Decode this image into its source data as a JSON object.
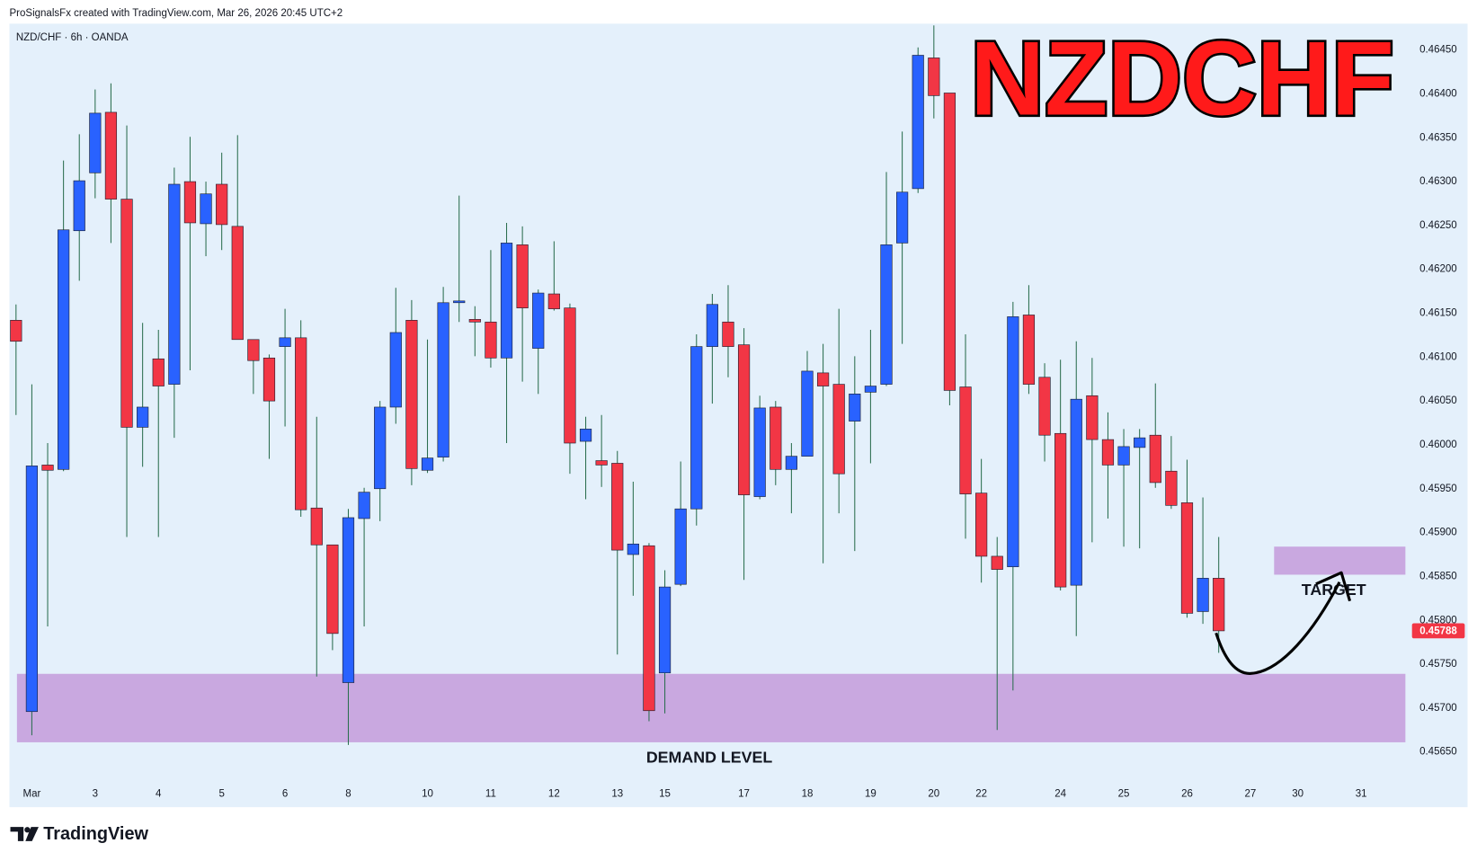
{
  "header": {
    "text": "ProSignalsFx created with TradingView.com, Mar 26, 2026 20:45 UTC+2"
  },
  "footer": {
    "brand": "TradingView"
  },
  "chart_data": {
    "type": "candlestick",
    "title": "NZDCHF",
    "subtitle": "NZD/CHF · 6h · OANDA",
    "categories": [
      null,
      "Mar",
      null,
      null,
      null,
      "3",
      null,
      null,
      null,
      "4",
      null,
      null,
      null,
      "5",
      null,
      null,
      null,
      "6",
      null,
      null,
      null,
      "8",
      null,
      null,
      null,
      null,
      "10",
      null,
      null,
      null,
      "11",
      null,
      null,
      null,
      "12",
      null,
      null,
      null,
      "13",
      null,
      null,
      "15",
      null,
      null,
      null,
      null,
      "17",
      null,
      null,
      null,
      "18",
      null,
      null,
      null,
      "19",
      null,
      null,
      null,
      "20",
      null,
      null,
      "22",
      null,
      null,
      null,
      null,
      "24",
      null,
      null,
      null,
      "25",
      null,
      null,
      null,
      "26",
      null,
      null,
      null,
      "27",
      null,
      null,
      "30",
      null,
      null,
      null,
      "31"
    ],
    "open": [
      0.46142,
      0.45696,
      0.45977,
      0.45972,
      0.46244,
      0.4631,
      0.46379,
      0.4628,
      0.4602,
      0.46098,
      0.46069,
      0.463,
      0.46252,
      0.46297,
      0.46249,
      0.4612,
      0.46099,
      0.46112,
      0.46122,
      0.45928,
      0.45886,
      0.45729,
      0.45916,
      0.4595,
      0.46043,
      0.46142,
      0.45971,
      0.45986,
      0.46162,
      0.46143,
      0.4614,
      0.46099,
      0.46228,
      0.4611,
      0.46172,
      0.46156,
      0.46004,
      0.45982,
      0.45979,
      0.45875,
      0.45885,
      0.4574,
      0.45841,
      0.45927,
      0.46112,
      0.4614,
      0.46114,
      0.45941,
      0.46043,
      0.45972,
      0.45987,
      0.46082,
      0.46069,
      0.46027,
      0.4606,
      0.46069,
      0.4623,
      0.46292,
      0.46441,
      0.46401,
      0.46066,
      0.45945,
      0.45873,
      0.45861,
      0.46148,
      0.46077,
      0.46013,
      0.4584,
      0.46056,
      0.46006,
      0.45977,
      0.45997,
      0.46011,
      0.4597,
      0.45934,
      0.4581,
      0.45848,
      null,
      null,
      null,
      null,
      null,
      null,
      null,
      null,
      null
    ],
    "high": [
      0.4616,
      0.46069,
      0.46002,
      0.46324,
      0.46354,
      0.46405,
      0.46412,
      0.46364,
      0.46139,
      0.46131,
      0.46316,
      0.46351,
      0.463,
      0.46333,
      0.46353,
      0.4612,
      0.46103,
      0.46155,
      0.46142,
      0.46032,
      0.45886,
      0.45927,
      0.45951,
      0.4605,
      0.46179,
      0.46165,
      0.4612,
      0.4618,
      0.46284,
      0.46158,
      0.46222,
      0.46253,
      0.46249,
      0.46177,
      0.46232,
      0.46161,
      0.46032,
      0.46034,
      0.45993,
      0.45958,
      0.45888,
      0.45857,
      0.45981,
      0.46126,
      0.46172,
      0.46182,
      0.46133,
      0.46056,
      0.4605,
      0.46002,
      0.46107,
      0.46115,
      0.46155,
      0.46101,
      0.46131,
      0.46311,
      0.46357,
      0.46453,
      0.46478,
      0.46401,
      0.46126,
      0.45984,
      0.45895,
      0.46163,
      0.46182,
      0.46093,
      0.46097,
      0.46118,
      0.46099,
      0.46037,
      0.46018,
      0.46018,
      0.4607,
      0.4601,
      0.45983,
      0.4594,
      0.45895,
      null,
      null,
      null,
      null,
      null,
      null,
      null,
      null,
      null
    ],
    "low": [
      0.46034,
      0.45669,
      0.45793,
      0.4597,
      0.46187,
      0.46281,
      0.4623,
      0.45895,
      0.45975,
      0.45895,
      0.46008,
      0.46085,
      0.46215,
      0.46222,
      0.4612,
      0.46058,
      0.45984,
      0.46021,
      0.45918,
      0.45736,
      0.45766,
      0.45658,
      0.45793,
      0.45913,
      0.46024,
      0.45954,
      0.45968,
      0.45981,
      0.4614,
      0.46101,
      0.46088,
      0.46002,
      0.46072,
      0.46058,
      0.46153,
      0.45967,
      0.45938,
      0.45952,
      0.45761,
      0.45828,
      0.45685,
      0.45694,
      0.45839,
      0.45908,
      0.46047,
      0.46077,
      0.45846,
      0.45938,
      0.45954,
      0.45922,
      0.45987,
      0.45865,
      0.45922,
      0.45879,
      0.45979,
      0.46067,
      0.46115,
      0.46287,
      0.46372,
      0.46045,
      0.45893,
      0.45843,
      0.45675,
      0.4572,
      0.46058,
      0.45981,
      0.45834,
      0.45782,
      0.45889,
      0.45916,
      0.45884,
      0.45882,
      0.45951,
      0.45927,
      0.45803,
      0.45796,
      0.45763,
      null,
      null,
      null,
      null,
      null,
      null,
      null,
      null,
      null
    ],
    "close": [
      0.46118,
      0.45976,
      0.45971,
      0.46245,
      0.46301,
      0.46378,
      0.4628,
      0.4602,
      0.46043,
      0.46067,
      0.46297,
      0.46253,
      0.46286,
      0.46251,
      0.4612,
      0.46096,
      0.4605,
      0.46122,
      0.45926,
      0.45886,
      0.45785,
      0.45917,
      0.45946,
      0.46043,
      0.46128,
      0.45973,
      0.45985,
      0.46162,
      0.46164,
      0.4614,
      0.46099,
      0.4623,
      0.46156,
      0.46173,
      0.46155,
      0.46002,
      0.46018,
      0.45977,
      0.4588,
      0.45887,
      0.45697,
      0.45838,
      0.45927,
      0.46112,
      0.4616,
      0.46112,
      0.45943,
      0.46042,
      0.45972,
      0.45987,
      0.46084,
      0.46067,
      0.45967,
      0.46058,
      0.46067,
      0.46228,
      0.46288,
      0.46444,
      0.46398,
      0.46062,
      0.45944,
      0.45873,
      0.45858,
      0.46146,
      0.46069,
      0.46011,
      0.45838,
      0.46052,
      0.46006,
      0.45977,
      0.45998,
      0.46008,
      0.45957,
      0.45931,
      0.45808,
      0.45848,
      0.45788,
      null,
      null,
      null,
      null,
      null,
      null,
      null,
      null,
      null
    ],
    "up_color": "#2962ff",
    "down_color": "#f23645",
    "wick_color": "#2b6e4f",
    "last_price": 0.45788,
    "ylim": [
      0.45616,
      0.4648
    ],
    "yticks": [
      {
        "value": 0.4645,
        "label": "0.46450"
      },
      {
        "value": 0.464,
        "label": "0.46400"
      },
      {
        "value": 0.4635,
        "label": "0.46350"
      },
      {
        "value": 0.463,
        "label": "0.46300"
      },
      {
        "value": 0.4625,
        "label": "0.46250"
      },
      {
        "value": 0.462,
        "label": "0.46200"
      },
      {
        "value": 0.4615,
        "label": "0.46150"
      },
      {
        "value": 0.461,
        "label": "0.46100"
      },
      {
        "value": 0.4605,
        "label": "0.46050"
      },
      {
        "value": 0.46,
        "label": "0.46000"
      },
      {
        "value": 0.4595,
        "label": "0.45950"
      },
      {
        "value": 0.459,
        "label": "0.45900"
      },
      {
        "value": 0.4585,
        "label": "0.45850"
      },
      {
        "value": 0.458,
        "label": "0.45800"
      },
      {
        "value": 0.4575,
        "label": "0.45750"
      },
      {
        "value": 0.457,
        "label": "0.45700"
      },
      {
        "value": 0.4565,
        "label": "0.45650"
      }
    ],
    "grid": false,
    "zones": [
      {
        "label": "DEMAND LEVEL",
        "low": 0.45661,
        "high": 0.45739,
        "color": "#c9a8e0"
      },
      {
        "label": "TARGET",
        "low": 0.45852,
        "high": 0.45884,
        "color": "#c9a8e0"
      }
    ]
  }
}
